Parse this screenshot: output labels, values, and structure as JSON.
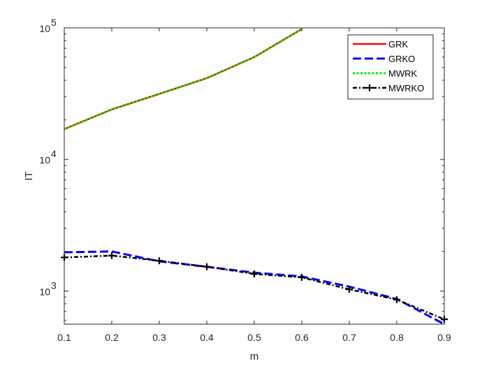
{
  "chart_data": {
    "type": "line",
    "xlabel": "m",
    "ylabel": "IT",
    "xlim": [
      0.1,
      0.9
    ],
    "ylim": [
      560,
      100000
    ],
    "yscale": "log",
    "grid": false,
    "legend_position": "top-right",
    "x_ticks": [
      "0.1",
      "0.2",
      "0.3",
      "0.4",
      "0.5",
      "0.6",
      "0.7",
      "0.8",
      "0.9"
    ],
    "y_ticks": [
      {
        "value": 1000,
        "base": "10",
        "exp": "3"
      },
      {
        "value": 10000,
        "base": "10",
        "exp": "4"
      },
      {
        "value": 100000,
        "base": "10",
        "exp": "5"
      }
    ],
    "series": [
      {
        "name": "GRK",
        "color": "#ff0000",
        "style": "solid",
        "marker": "none",
        "x": [
          0.1,
          0.2,
          0.3,
          0.4,
          0.5,
          0.6
        ],
        "y": [
          17000,
          24000,
          31500,
          41500,
          60000,
          98000
        ]
      },
      {
        "name": "GRKO",
        "color": "#0000ff",
        "style": "dashed",
        "marker": "none",
        "x": [
          0.1,
          0.2,
          0.3,
          0.4,
          0.5,
          0.6,
          0.7,
          0.8,
          0.9
        ],
        "y": [
          1970,
          2000,
          1680,
          1530,
          1380,
          1290,
          1080,
          870,
          560
        ]
      },
      {
        "name": "MWRK",
        "color": "#00ee00",
        "style": "dotted",
        "marker": "none",
        "x": [
          0.1,
          0.2,
          0.3,
          0.4,
          0.5,
          0.6
        ],
        "y": [
          17000,
          24000,
          31500,
          41500,
          60000,
          98000
        ]
      },
      {
        "name": "MWRKO",
        "color": "#000000",
        "style": "dashdot",
        "marker": "plus",
        "x": [
          0.1,
          0.2,
          0.3,
          0.4,
          0.5,
          0.6,
          0.7,
          0.8,
          0.9
        ],
        "y": [
          1800,
          1860,
          1700,
          1530,
          1350,
          1270,
          1030,
          860,
          610
        ]
      }
    ]
  }
}
